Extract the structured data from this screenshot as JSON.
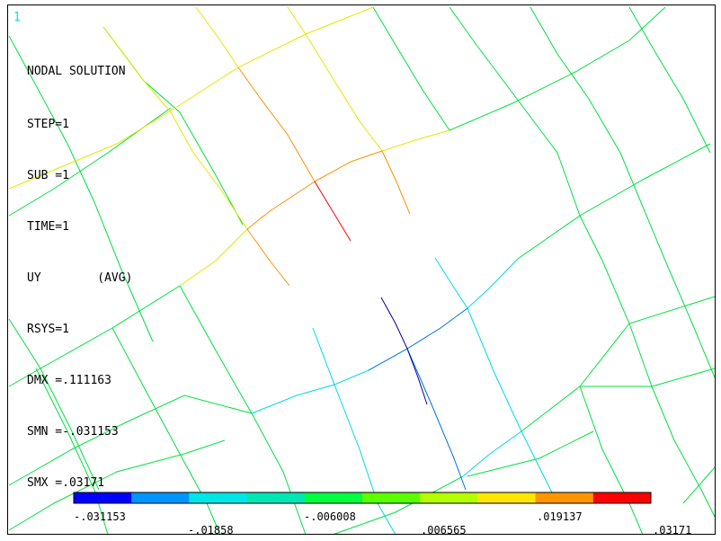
{
  "window": {
    "number": "1"
  },
  "info": {
    "title": "NODAL SOLUTION",
    "lines": [
      "STEP=1",
      "SUB =1",
      "TIME=1",
      "UY        (AVG)",
      "RSYS=1",
      "DMX =.111163",
      "SMN =-.031153",
      "SMX =.03171"
    ]
  },
  "legend": {
    "colors": [
      "#0000ff",
      "#0096ff",
      "#00e6e6",
      "#00e6b4",
      "#00ff40",
      "#5aff00",
      "#b4ff00",
      "#ffe600",
      "#ff9600",
      "#ff0000"
    ],
    "labels": [
      "-.031153",
      "-.01858",
      "-.006008",
      ".006565",
      ".019137",
      ".03171"
    ]
  },
  "mesh": {
    "colors": {
      "green": "#00e040",
      "yellow": "#e6e600",
      "orange": "#ff9000",
      "red": "#ff0000",
      "cyan": "#00d8e8",
      "blue": "#0070e0",
      "navy": "#000099"
    }
  }
}
